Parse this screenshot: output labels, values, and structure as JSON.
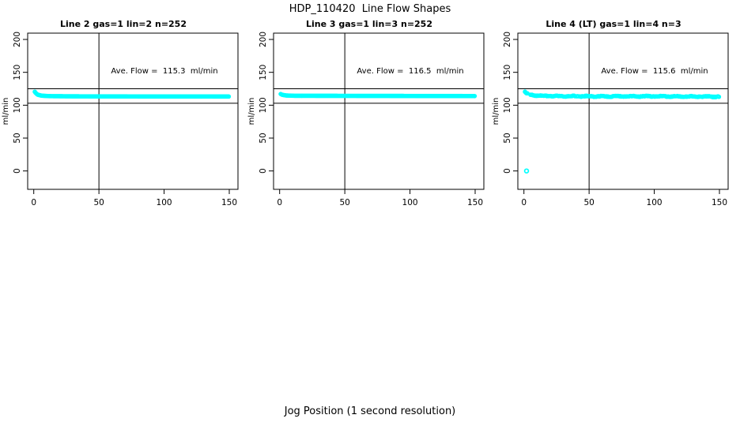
{
  "page": {
    "title": "HDP_110420  Line Flow Shapes",
    "xlabel": "Jog Position (1 second resolution)"
  },
  "colors": {
    "series": "#00FFFF",
    "axis": "#000000",
    "background": "#FFFFFF"
  },
  "chart_data": [
    {
      "type": "scatter",
      "title": "Line 2 gas=1 lin=2 n=252",
      "annotation": "Ave. Flow =  115.3  ml/min",
      "ave_flow": 115.3,
      "n": 252,
      "ylabel": "ml/min",
      "ylim": [
        0,
        200
      ],
      "xlim": [
        0,
        150
      ],
      "x_ticks": [
        0,
        50,
        100,
        150
      ],
      "y_ticks": [
        0,
        50,
        100,
        150,
        200
      ],
      "ref_lines_y": [
        125,
        103
      ],
      "ref_line_x": 50,
      "annotation_pos": {
        "x": 100,
        "y": 150
      },
      "series_profile": [
        [
          0.8,
          120.5
        ],
        [
          1.5,
          118.5
        ],
        [
          3,
          116
        ],
        [
          6,
          114.5
        ],
        [
          12,
          113.8
        ],
        [
          30,
          113.5
        ],
        [
          80,
          113.3
        ],
        [
          150,
          113.2
        ]
      ],
      "point_step": 0.6,
      "jitter": 0,
      "gap_prob": 0,
      "outliers": []
    },
    {
      "type": "scatter",
      "title": "Line 3 gas=1 lin=3 n=252",
      "annotation": "Ave. Flow =  116.5  ml/min",
      "ave_flow": 116.5,
      "n": 252,
      "ylabel": "ml/min",
      "ylim": [
        0,
        200
      ],
      "xlim": [
        0,
        150
      ],
      "x_ticks": [
        0,
        50,
        100,
        150
      ],
      "y_ticks": [
        0,
        50,
        100,
        150,
        200
      ],
      "ref_lines_y": [
        125,
        103
      ],
      "ref_line_x": 50,
      "annotation_pos": {
        "x": 100,
        "y": 150
      },
      "series_profile": [
        [
          0.8,
          117
        ],
        [
          2,
          115.8
        ],
        [
          5,
          114.8
        ],
        [
          12,
          114.3
        ],
        [
          60,
          114.2
        ],
        [
          150,
          113.9
        ]
      ],
      "point_step": 0.6,
      "jitter": 0,
      "gap_prob": 0,
      "outliers": []
    },
    {
      "type": "scatter",
      "title": "Line 4 (LT) gas=1 lin=4 n=3",
      "annotation": "Ave. Flow =  115.6  ml/min",
      "ave_flow": 115.6,
      "n": 3,
      "ylabel": "ml/min",
      "ylim": [
        0,
        200
      ],
      "xlim": [
        0,
        150
      ],
      "x_ticks": [
        0,
        50,
        100,
        150
      ],
      "y_ticks": [
        0,
        50,
        100,
        150,
        200
      ],
      "ref_lines_y": [
        125,
        103
      ],
      "ref_line_x": 50,
      "annotation_pos": {
        "x": 100,
        "y": 150
      },
      "series_profile": [
        [
          0.8,
          120
        ],
        [
          2,
          118
        ],
        [
          5,
          116
        ],
        [
          10,
          114.5
        ],
        [
          25,
          113.8
        ],
        [
          60,
          113.4
        ],
        [
          100,
          113.6
        ],
        [
          150,
          112.9
        ]
      ],
      "point_step": 0.6,
      "jitter": 0.9,
      "gap_prob": 0.12,
      "outliers": [
        [
          2,
          0
        ]
      ]
    }
  ]
}
